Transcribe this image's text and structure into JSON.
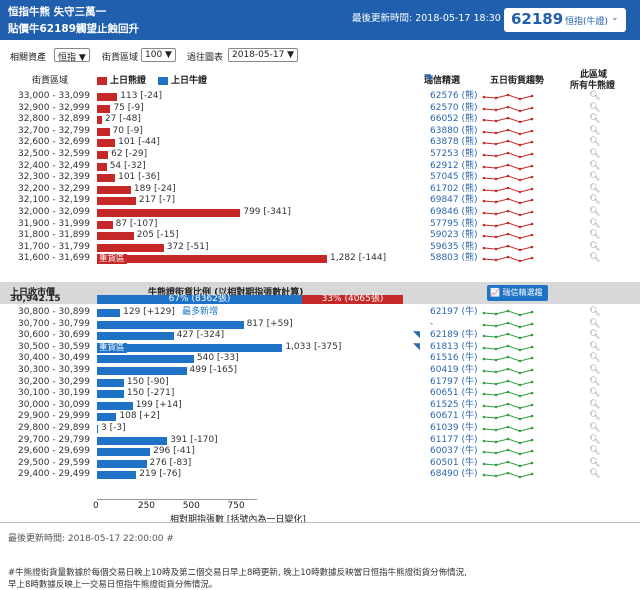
{
  "header": {
    "title1": "恒指牛熊 失守三萬一",
    "title2": "貼價牛62189觸望止蝕回升",
    "update": "最後更新時間: 2018-05-17 18:30",
    "code": "62189",
    "code_label": "恒指(牛證)",
    "chevron": "⌄"
  },
  "filters": {
    "underlying_label": "相關資產",
    "underlying_value": "恒指 ▼",
    "range_label": "街貨區域",
    "range_value": "100 ▼",
    "history_label": "過往圖表",
    "history_value": "2018-05-17 ▼"
  },
  "columns": {
    "range": "街貨區域",
    "bear": "上日熊證",
    "bull": "上日牛證",
    "picks": "瑞信精選",
    "trend": "五日街貨趨勢",
    "all": "此區域",
    "all2": "所有牛熊證"
  },
  "colors": {
    "bear": "#c62828",
    "bull": "#1e73c7",
    "header": "#1f5fae"
  },
  "bear_rows": [
    {
      "range": "33,000 - 33,099",
      "value": 113,
      "label": "113 [-24]",
      "code": "62576 (熊)"
    },
    {
      "range": "32,900 - 32,999",
      "value": 75,
      "label": "75 [-9]",
      "code": "62570 (熊)"
    },
    {
      "range": "32,800 - 32,899",
      "value": 27,
      "label": "27 [-48]",
      "code": "66052 (熊)"
    },
    {
      "range": "32,700 - 32,799",
      "value": 70,
      "label": "70 [-9]",
      "code": "63880 (熊)"
    },
    {
      "range": "32,600 - 32,699",
      "value": 101,
      "label": "101 [-44]",
      "code": "63878 (熊)"
    },
    {
      "range": "32,500 - 32,599",
      "value": 62,
      "label": "62 [-29]",
      "code": "57253 (熊)"
    },
    {
      "range": "32,400 - 32,499",
      "value": 54,
      "label": "54 [-32]",
      "code": "62912 (熊)"
    },
    {
      "range": "32,300 - 32,399",
      "value": 101,
      "label": "101 [-36]",
      "code": "57045 (熊)"
    },
    {
      "range": "32,200 - 32,299",
      "value": 189,
      "label": "189 [-24]",
      "code": "61702 (熊)"
    },
    {
      "range": "32,100 - 32,199",
      "value": 217,
      "label": "217 [-7]",
      "code": "69847 (熊)"
    },
    {
      "range": "32,000 - 32,099",
      "value": 799,
      "label": "799 [-341]",
      "code": "69846 (熊)"
    },
    {
      "range": "31,900 - 31,999",
      "value": 87,
      "label": "87 [-107]",
      "code": "57795 (熊)"
    },
    {
      "range": "31,800 - 31,899",
      "value": 205,
      "label": "205 [-15]",
      "code": "59023 (熊)"
    },
    {
      "range": "31,700 - 31,799",
      "value": 372,
      "label": "372 [-51]",
      "code": "59635 (熊)"
    },
    {
      "range": "31,600 - 31,699",
      "value": 1282,
      "label": "1,282 [-144]",
      "code": "58803 (熊)",
      "badge": "重貨區"
    }
  ],
  "mid": {
    "close_label": "上日收市價",
    "close_value": "30,942.15",
    "ratio_title": "牛熊證街貨比例 (以相對期指張數計算)",
    "bull_pct": "67% (8362張)",
    "bear_pct": "33% (4065張)",
    "bull_frac": 67,
    "button": "瑞信精選趨勢"
  },
  "bull_rows": [
    {
      "range": "30,800 - 30,899",
      "value": 129,
      "label": "129 [+129]",
      "extra": "最多新增",
      "code": "62197 (牛)"
    },
    {
      "range": "30,700 - 30,799",
      "value": 817,
      "label": "817 [+59]",
      "code": "-"
    },
    {
      "range": "30,600 - 30,699",
      "value": 427,
      "label": "427 [-324]",
      "code": "62189 (牛)",
      "icon": true
    },
    {
      "range": "30,500 - 30,599",
      "value": 1033,
      "label": "1,033 [-375]",
      "code": "61813 (牛)",
      "icon": true,
      "badge": "重貨區"
    },
    {
      "range": "30,400 - 30,499",
      "value": 540,
      "label": "540 [-33]",
      "code": "61516 (牛)"
    },
    {
      "range": "30,300 - 30,399",
      "value": 499,
      "label": "499 [-165]",
      "code": "60419 (牛)"
    },
    {
      "range": "30,200 - 30,299",
      "value": 150,
      "label": "150 [-90]",
      "code": "61797 (牛)"
    },
    {
      "range": "30,100 - 30,199",
      "value": 150,
      "label": "150 [-271]",
      "code": "60651 (牛)"
    },
    {
      "range": "30,000 - 30,099",
      "value": 199,
      "label": "199 [+14]",
      "code": "61525 (牛)"
    },
    {
      "range": "29,900 - 29,999",
      "value": 108,
      "label": "108 [+2]",
      "code": "60671 (牛)"
    },
    {
      "range": "29,800 - 29,899",
      "value": 3,
      "label": "3 [-3]",
      "code": "61039 (牛)"
    },
    {
      "range": "29,700 - 29,799",
      "value": 391,
      "label": "391 [-170]",
      "code": "61177 (牛)"
    },
    {
      "range": "29,600 - 29,699",
      "value": 296,
      "label": "296 [-41]",
      "code": "60037 (牛)"
    },
    {
      "range": "29,500 - 29,599",
      "value": 276,
      "label": "276 [-83]",
      "code": "60501 (牛)"
    },
    {
      "range": "29,400 - 29,499",
      "value": 219,
      "label": "219 [-76]",
      "code": "68490 (牛)"
    }
  ],
  "axis": {
    "ticks": [
      "0",
      "250",
      "500",
      "750"
    ],
    "label": "相對期指張數 [括號內為一日變化]",
    "max": 1400
  },
  "footer": {
    "update": "最後更新時間: 2018-05-17 22:00:00 #",
    "note1": "#牛熊證街貨量數據於每個交易日晚上10時及第二個交易日早上8時更新, 晚上10時數據反映當日恒指牛熊證街貨分佈情況,",
    "note2": "早上8時數據反映上一交易日恒指牛熊證街貨分佈情況。"
  }
}
